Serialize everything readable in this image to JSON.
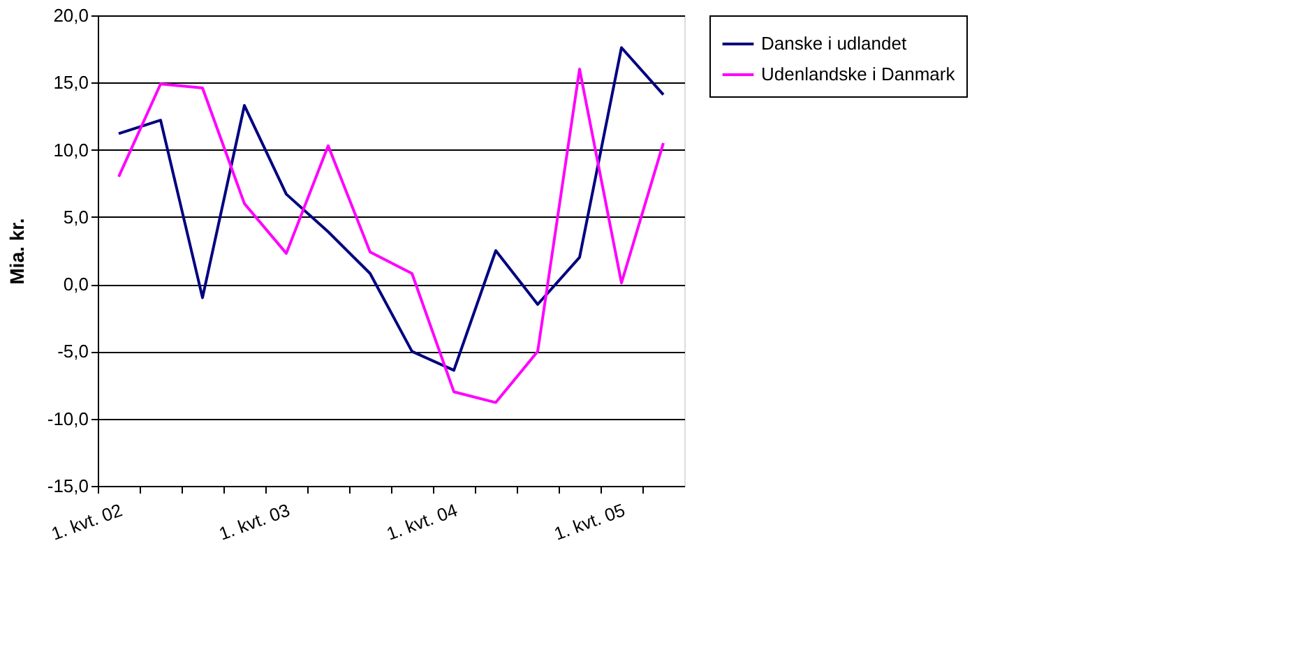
{
  "chart_data": {
    "type": "line",
    "ylabel": "Mia. kr.",
    "categories": [
      "1. kvt. 02",
      null,
      null,
      null,
      "1. kvt. 03",
      null,
      null,
      null,
      "1. kvt. 04",
      null,
      null,
      null,
      "1. kvt. 05",
      null
    ],
    "series": [
      {
        "name": "Danske i udlandet",
        "color": "#000080",
        "values": [
          11.2,
          12.2,
          -1.0,
          13.3,
          6.7,
          3.9,
          0.8,
          -5.0,
          -6.4,
          2.5,
          -1.5,
          2.0,
          17.6,
          14.1
        ]
      },
      {
        "name": "Udenlandske i Danmark",
        "color": "#ff00ff",
        "values": [
          8.0,
          14.9,
          14.6,
          6.0,
          2.3,
          10.3,
          2.4,
          0.8,
          -8.0,
          -8.8,
          -5.0,
          16.0,
          0.1,
          10.5
        ]
      }
    ],
    "ylim": [
      -15,
      20
    ],
    "yticks": [
      {
        "value": -15,
        "label": "-15,0"
      },
      {
        "value": -10,
        "label": "-10,0"
      },
      {
        "value": -5,
        "label": "-5,0"
      },
      {
        "value": 0,
        "label": "0,0"
      },
      {
        "value": 5,
        "label": "5,0"
      },
      {
        "value": 10,
        "label": "10,0"
      },
      {
        "value": 15,
        "label": "15,0"
      },
      {
        "value": 20,
        "label": "20,0"
      }
    ],
    "grid": "y",
    "legend": "right",
    "marker": "none",
    "line_style": "solid"
  }
}
